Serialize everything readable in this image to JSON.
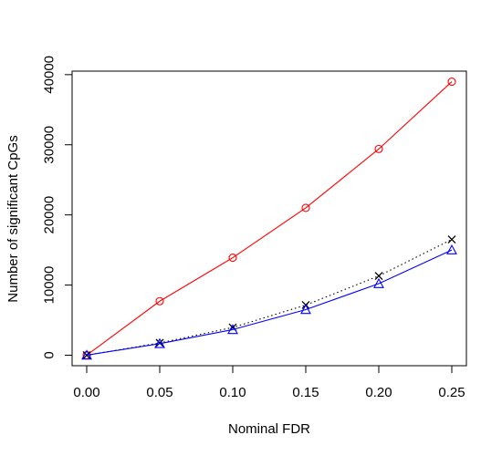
{
  "chart_data": {
    "type": "line",
    "title": "",
    "xlabel": "Nominal FDR",
    "ylabel": "Number of significant CpGs",
    "x": [
      0.0,
      0.05,
      0.1,
      0.15,
      0.2,
      0.25
    ],
    "xlim": [
      -0.01,
      0.26
    ],
    "ylim": [
      -1500,
      40500
    ],
    "xticks": [
      0.0,
      0.05,
      0.1,
      0.15,
      0.2,
      0.25
    ],
    "xtick_labels": [
      "0.00",
      "0.05",
      "0.10",
      "0.15",
      "0.20",
      "0.25"
    ],
    "yticks": [
      0,
      10000,
      20000,
      30000,
      40000
    ],
    "ytick_labels": [
      "0",
      "10000",
      "20000",
      "30000",
      "40000"
    ],
    "grid": false,
    "legend": "none",
    "series": [
      {
        "color": "#ff0000",
        "line": "solid",
        "marker": "circle",
        "values": [
          0,
          7700,
          13900,
          21000,
          29400,
          39000
        ]
      },
      {
        "color": "#000000",
        "line": "dotted",
        "marker": "x",
        "values": [
          0,
          1750,
          3950,
          7150,
          11300,
          16500
        ]
      },
      {
        "color": "#0000ff",
        "line": "solid",
        "marker": "triangle",
        "values": [
          0,
          1650,
          3650,
          6500,
          10200,
          15000
        ]
      }
    ]
  }
}
